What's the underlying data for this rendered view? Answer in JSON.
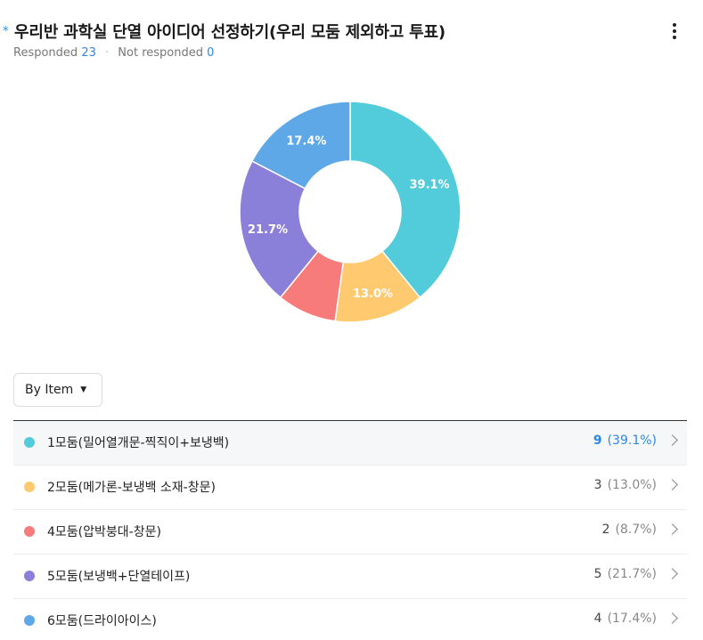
{
  "question": {
    "required_mark": "*",
    "title": "우리반 과학실 단열 아이디어 선정하기(우리 모둠 제외하고 투표)"
  },
  "responses": {
    "responded_label": "Responded",
    "responded_count": "23",
    "not_responded_label": "Not responded",
    "not_responded_count": "0"
  },
  "view_toggle": {
    "label": "By Item"
  },
  "chart_data": {
    "type": "pie",
    "style": "donut",
    "categories": [
      "1모둠(밀어열개문-찍직이+보냉백)",
      "2모둠(메가론-보냉백 소재-창문)",
      "4모둠(압박붕대-창문)",
      "5모둠(보냉백+단열테이프)",
      "6모둠(드라이아이스)"
    ],
    "values": [
      9,
      3,
      2,
      5,
      4
    ],
    "percent_labels": [
      "39.1%",
      "13.0%",
      "",
      "21.7%",
      "17.4%"
    ],
    "colors": [
      "#52ccdb",
      "#ffc96f",
      "#f77b7b",
      "#8b80d9",
      "#5fa8e8"
    ]
  },
  "items": [
    {
      "label": "1모둠(밀어열개문-찍직이+보냉백)",
      "count": "9",
      "percent": "(39.1%)",
      "color": "#52ccdb"
    },
    {
      "label": "2모둠(메가론-보냉백 소재-창문)",
      "count": "3",
      "percent": "(13.0%)",
      "color": "#ffc96f"
    },
    {
      "label": "4모둠(압박붕대-창문)",
      "count": "2",
      "percent": "(8.7%)",
      "color": "#f77b7b"
    },
    {
      "label": "5모둠(보냉백+단열테이프)",
      "count": "5",
      "percent": "(21.7%)",
      "color": "#8b80d9"
    },
    {
      "label": "6모둠(드라이아이스)",
      "count": "4",
      "percent": "(17.4%)",
      "color": "#5fa8e8"
    }
  ],
  "icons": {
    "more": "more-vertical-icon",
    "caret": "caret-down-icon",
    "chevron": "chevron-right-icon"
  }
}
